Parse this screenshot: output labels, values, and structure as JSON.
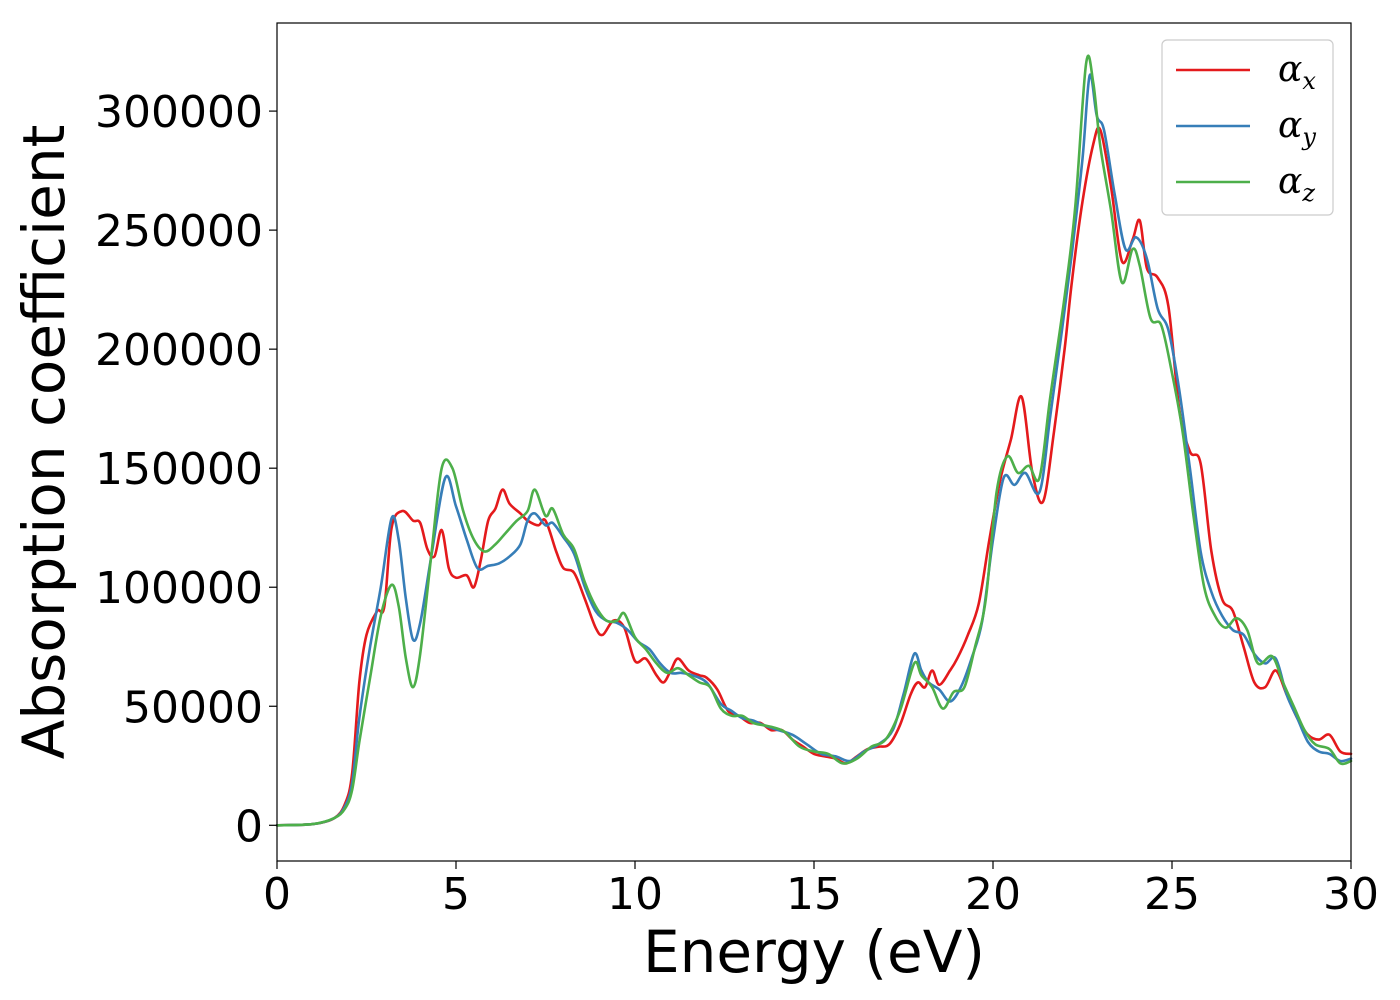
{
  "chart_data": {
    "type": "line",
    "title": "",
    "xlabel": "Energy (eV)",
    "ylabel": "Absorption coefficient",
    "xlim": [
      0,
      30
    ],
    "ylim": [
      -15000,
      337000
    ],
    "xticks": [
      0,
      5,
      10,
      15,
      20,
      25,
      30
    ],
    "yticks": [
      0,
      50000,
      100000,
      150000,
      200000,
      250000,
      300000
    ],
    "grid": false,
    "legend_position": "top-right",
    "series": [
      {
        "name_base": "α",
        "name_sub": "x",
        "color": "#e41a1c",
        "points": [
          [
            0,
            0
          ],
          [
            1,
            500
          ],
          [
            1.6,
            3000
          ],
          [
            1.9,
            9000
          ],
          [
            2.1,
            22000
          ],
          [
            2.3,
            60000
          ],
          [
            2.5,
            80000
          ],
          [
            2.8,
            90000
          ],
          [
            3.0,
            92000
          ],
          [
            3.2,
            125000
          ],
          [
            3.5,
            132000
          ],
          [
            3.8,
            128000
          ],
          [
            4.0,
            127000
          ],
          [
            4.2,
            116000
          ],
          [
            4.4,
            113000
          ],
          [
            4.6,
            124000
          ],
          [
            4.8,
            108000
          ],
          [
            5.0,
            104000
          ],
          [
            5.3,
            105000
          ],
          [
            5.5,
            100000
          ],
          [
            5.7,
            112000
          ],
          [
            5.9,
            128000
          ],
          [
            6.1,
            133000
          ],
          [
            6.3,
            141000
          ],
          [
            6.5,
            135000
          ],
          [
            6.8,
            131000
          ],
          [
            7.0,
            128000
          ],
          [
            7.3,
            126000
          ],
          [
            7.5,
            128000
          ],
          [
            7.8,
            115000
          ],
          [
            8.0,
            108000
          ],
          [
            8.3,
            106000
          ],
          [
            8.6,
            95000
          ],
          [
            8.9,
            83000
          ],
          [
            9.1,
            80000
          ],
          [
            9.4,
            86000
          ],
          [
            9.7,
            83000
          ],
          [
            10.0,
            69000
          ],
          [
            10.3,
            70000
          ],
          [
            10.6,
            63000
          ],
          [
            10.8,
            60000
          ],
          [
            11.0,
            65000
          ],
          [
            11.2,
            70000
          ],
          [
            11.5,
            65000
          ],
          [
            11.8,
            63000
          ],
          [
            12.0,
            62000
          ],
          [
            12.3,
            57000
          ],
          [
            12.6,
            48000
          ],
          [
            12.9,
            46000
          ],
          [
            13.2,
            43000
          ],
          [
            13.5,
            43000
          ],
          [
            13.8,
            40000
          ],
          [
            14.1,
            40000
          ],
          [
            14.4,
            36000
          ],
          [
            14.7,
            33000
          ],
          [
            15.0,
            30000
          ],
          [
            15.3,
            29000
          ],
          [
            15.6,
            28000
          ],
          [
            15.9,
            26000
          ],
          [
            16.2,
            29000
          ],
          [
            16.5,
            32000
          ],
          [
            16.8,
            33000
          ],
          [
            17.1,
            34000
          ],
          [
            17.4,
            42000
          ],
          [
            17.7,
            55000
          ],
          [
            17.9,
            60000
          ],
          [
            18.1,
            58000
          ],
          [
            18.3,
            65000
          ],
          [
            18.5,
            59000
          ],
          [
            18.8,
            65000
          ],
          [
            19.0,
            70000
          ],
          [
            19.3,
            80000
          ],
          [
            19.6,
            93000
          ],
          [
            19.9,
            120000
          ],
          [
            20.2,
            145000
          ],
          [
            20.5,
            162000
          ],
          [
            20.8,
            180000
          ],
          [
            21.1,
            148000
          ],
          [
            21.4,
            136000
          ],
          [
            21.7,
            165000
          ],
          [
            22.0,
            200000
          ],
          [
            22.2,
            228000
          ],
          [
            22.5,
            262000
          ],
          [
            22.8,
            286000
          ],
          [
            23.0,
            292000
          ],
          [
            23.3,
            268000
          ],
          [
            23.6,
            237000
          ],
          [
            23.9,
            246000
          ],
          [
            24.1,
            254000
          ],
          [
            24.3,
            234000
          ],
          [
            24.6,
            230000
          ],
          [
            24.9,
            218000
          ],
          [
            25.2,
            175000
          ],
          [
            25.5,
            157000
          ],
          [
            25.8,
            152000
          ],
          [
            26.1,
            115000
          ],
          [
            26.4,
            95000
          ],
          [
            26.7,
            90000
          ],
          [
            27.0,
            75000
          ],
          [
            27.3,
            60000
          ],
          [
            27.6,
            58000
          ],
          [
            27.9,
            65000
          ],
          [
            28.2,
            55000
          ],
          [
            28.5,
            45000
          ],
          [
            28.8,
            38000
          ],
          [
            29.1,
            36000
          ],
          [
            29.4,
            38000
          ],
          [
            29.7,
            31000
          ],
          [
            30.0,
            30000
          ]
        ]
      },
      {
        "name_base": "α",
        "name_sub": "y",
        "color": "#377eb8",
        "points": [
          [
            0,
            0
          ],
          [
            1,
            500
          ],
          [
            1.6,
            3000
          ],
          [
            1.9,
            8000
          ],
          [
            2.1,
            18000
          ],
          [
            2.3,
            45000
          ],
          [
            2.6,
            75000
          ],
          [
            2.9,
            100000
          ],
          [
            3.2,
            129000
          ],
          [
            3.4,
            120000
          ],
          [
            3.6,
            95000
          ],
          [
            3.8,
            78000
          ],
          [
            4.0,
            85000
          ],
          [
            4.3,
            112000
          ],
          [
            4.7,
            146000
          ],
          [
            5.0,
            134000
          ],
          [
            5.3,
            120000
          ],
          [
            5.6,
            108000
          ],
          [
            5.9,
            109000
          ],
          [
            6.2,
            110000
          ],
          [
            6.5,
            113000
          ],
          [
            6.8,
            118000
          ],
          [
            7.0,
            128000
          ],
          [
            7.2,
            131000
          ],
          [
            7.5,
            126000
          ],
          [
            7.7,
            127000
          ],
          [
            8.0,
            121000
          ],
          [
            8.3,
            114000
          ],
          [
            8.6,
            100000
          ],
          [
            8.9,
            90000
          ],
          [
            9.2,
            86000
          ],
          [
            9.5,
            85000
          ],
          [
            9.8,
            82000
          ],
          [
            10.1,
            77000
          ],
          [
            10.4,
            74000
          ],
          [
            10.7,
            68000
          ],
          [
            11.0,
            64000
          ],
          [
            11.3,
            64000
          ],
          [
            11.6,
            63000
          ],
          [
            12.0,
            60000
          ],
          [
            12.4,
            51000
          ],
          [
            12.7,
            48000
          ],
          [
            13.0,
            45000
          ],
          [
            13.3,
            44000
          ],
          [
            13.6,
            42000
          ],
          [
            14.0,
            40000
          ],
          [
            14.4,
            38000
          ],
          [
            14.8,
            34000
          ],
          [
            15.2,
            30000
          ],
          [
            15.6,
            29000
          ],
          [
            16.0,
            27000
          ],
          [
            16.4,
            31000
          ],
          [
            16.8,
            34000
          ],
          [
            17.2,
            40000
          ],
          [
            17.5,
            55000
          ],
          [
            17.8,
            72000
          ],
          [
            18.0,
            65000
          ],
          [
            18.2,
            60000
          ],
          [
            18.5,
            57000
          ],
          [
            18.8,
            52000
          ],
          [
            19.1,
            58000
          ],
          [
            19.4,
            70000
          ],
          [
            19.7,
            86000
          ],
          [
            20.0,
            120000
          ],
          [
            20.3,
            146000
          ],
          [
            20.6,
            143000
          ],
          [
            20.9,
            148000
          ],
          [
            21.3,
            140000
          ],
          [
            21.6,
            172000
          ],
          [
            21.9,
            205000
          ],
          [
            22.2,
            240000
          ],
          [
            22.5,
            280000
          ],
          [
            22.7,
            315000
          ],
          [
            22.9,
            298000
          ],
          [
            23.1,
            292000
          ],
          [
            23.4,
            265000
          ],
          [
            23.7,
            242000
          ],
          [
            24.0,
            247000
          ],
          [
            24.3,
            238000
          ],
          [
            24.6,
            217000
          ],
          [
            24.9,
            208000
          ],
          [
            25.2,
            183000
          ],
          [
            25.5,
            150000
          ],
          [
            25.8,
            115000
          ],
          [
            26.1,
            98000
          ],
          [
            26.4,
            88000
          ],
          [
            26.7,
            82000
          ],
          [
            27.0,
            80000
          ],
          [
            27.3,
            72000
          ],
          [
            27.6,
            68000
          ],
          [
            27.9,
            70000
          ],
          [
            28.2,
            55000
          ],
          [
            28.5,
            45000
          ],
          [
            28.8,
            35000
          ],
          [
            29.1,
            31000
          ],
          [
            29.4,
            30000
          ],
          [
            29.7,
            27000
          ],
          [
            30.0,
            28000
          ]
        ]
      },
      {
        "name_base": "α",
        "name_sub": "z",
        "color": "#4daf4a",
        "points": [
          [
            0,
            0
          ],
          [
            1,
            500
          ],
          [
            1.6,
            3000
          ],
          [
            1.9,
            7000
          ],
          [
            2.1,
            15000
          ],
          [
            2.3,
            35000
          ],
          [
            2.6,
            62000
          ],
          [
            2.9,
            88000
          ],
          [
            3.2,
            101000
          ],
          [
            3.4,
            92000
          ],
          [
            3.6,
            70000
          ],
          [
            3.8,
            58000
          ],
          [
            4.0,
            72000
          ],
          [
            4.3,
            112000
          ],
          [
            4.6,
            150000
          ],
          [
            4.9,
            150000
          ],
          [
            5.2,
            132000
          ],
          [
            5.5,
            120000
          ],
          [
            5.8,
            115000
          ],
          [
            6.1,
            118000
          ],
          [
            6.4,
            123000
          ],
          [
            6.7,
            128000
          ],
          [
            7.0,
            132000
          ],
          [
            7.2,
            141000
          ],
          [
            7.5,
            130000
          ],
          [
            7.7,
            133000
          ],
          [
            8.0,
            122000
          ],
          [
            8.3,
            116000
          ],
          [
            8.6,
            102000
          ],
          [
            8.9,
            92000
          ],
          [
            9.2,
            86000
          ],
          [
            9.5,
            86000
          ],
          [
            9.7,
            89000
          ],
          [
            10.0,
            79000
          ],
          [
            10.3,
            74000
          ],
          [
            10.6,
            68000
          ],
          [
            10.9,
            64000
          ],
          [
            11.2,
            66000
          ],
          [
            11.5,
            63000
          ],
          [
            11.8,
            60000
          ],
          [
            12.1,
            58000
          ],
          [
            12.4,
            49000
          ],
          [
            12.7,
            46000
          ],
          [
            13.0,
            46000
          ],
          [
            13.3,
            43000
          ],
          [
            13.6,
            42000
          ],
          [
            13.9,
            41000
          ],
          [
            14.2,
            39000
          ],
          [
            14.6,
            33000
          ],
          [
            15.0,
            31000
          ],
          [
            15.4,
            30000
          ],
          [
            15.8,
            26000
          ],
          [
            16.2,
            28000
          ],
          [
            16.6,
            33000
          ],
          [
            17.0,
            36000
          ],
          [
            17.4,
            48000
          ],
          [
            17.8,
            68000
          ],
          [
            18.0,
            63000
          ],
          [
            18.3,
            58000
          ],
          [
            18.6,
            49000
          ],
          [
            18.9,
            56000
          ],
          [
            19.2,
            58000
          ],
          [
            19.5,
            75000
          ],
          [
            19.8,
            95000
          ],
          [
            20.1,
            140000
          ],
          [
            20.4,
            155000
          ],
          [
            20.7,
            148000
          ],
          [
            21.0,
            151000
          ],
          [
            21.3,
            146000
          ],
          [
            21.6,
            180000
          ],
          [
            22.0,
            222000
          ],
          [
            22.3,
            260000
          ],
          [
            22.6,
            320000
          ],
          [
            22.8,
            312000
          ],
          [
            23.0,
            285000
          ],
          [
            23.3,
            258000
          ],
          [
            23.6,
            228000
          ],
          [
            23.9,
            242000
          ],
          [
            24.1,
            235000
          ],
          [
            24.4,
            213000
          ],
          [
            24.7,
            210000
          ],
          [
            25.0,
            190000
          ],
          [
            25.3,
            165000
          ],
          [
            25.6,
            130000
          ],
          [
            25.9,
            100000
          ],
          [
            26.2,
            88000
          ],
          [
            26.5,
            83000
          ],
          [
            26.8,
            87000
          ],
          [
            27.1,
            82000
          ],
          [
            27.4,
            68000
          ],
          [
            27.8,
            71000
          ],
          [
            28.1,
            60000
          ],
          [
            28.4,
            50000
          ],
          [
            28.7,
            40000
          ],
          [
            29.0,
            34000
          ],
          [
            29.4,
            32000
          ],
          [
            29.7,
            26000
          ],
          [
            30.0,
            27000
          ]
        ]
      }
    ]
  }
}
